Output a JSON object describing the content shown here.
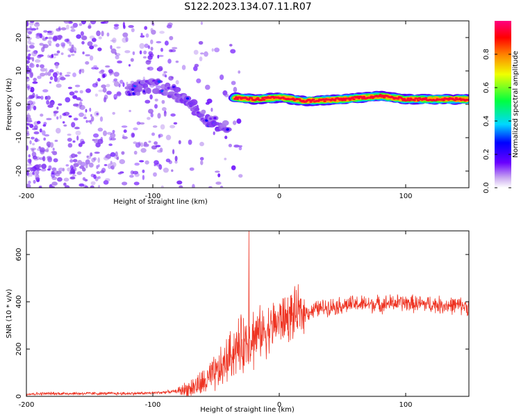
{
  "title": "S122.2023.134.07.11.R07",
  "colors": {
    "snr_line": "#ee3322",
    "spectrogram_low": "#d8c4f2",
    "spectrogram_high": "#ff0055"
  },
  "chart_data": [
    {
      "type": "heatmap",
      "name": "spectrogram",
      "xlabel": "Height of straight line (km)",
      "ylabel": "Frequency (Hz)",
      "xlim": [
        -200,
        150
      ],
      "ylim": [
        -25,
        25
      ],
      "xticks": [
        -200,
        -100,
        0,
        100
      ],
      "yticks": [
        -20,
        -10,
        0,
        10,
        20
      ],
      "colorbar": {
        "label": "Normalized spectral amplitude",
        "range": [
          0,
          1
        ],
        "ticks": [
          "0.0",
          "0.2",
          "0.4",
          "0.6",
          "0.8"
        ],
        "tick_values": [
          0.0,
          0.2,
          0.4,
          0.6,
          0.8
        ]
      },
      "features": [
        {
          "name": "diffuse noise",
          "x_range": [
            -200,
            -30
          ],
          "freq_range": [
            -25,
            25
          ],
          "amplitude": 0.05
        },
        {
          "name": "descending track",
          "points": [
            [
              -120,
              4
            ],
            [
              -100,
              6
            ],
            [
              -85,
              4
            ],
            [
              -70,
              0
            ],
            [
              -60,
              -4
            ],
            [
              -50,
              -6
            ],
            [
              -40,
              -7
            ]
          ],
          "amplitude": 0.35
        },
        {
          "name": "dominant line",
          "points": [
            [
              -35,
              2
            ],
            [
              -20,
              1.5
            ],
            [
              0,
              2
            ],
            [
              20,
              1
            ],
            [
              50,
              1.5
            ],
            [
              80,
              2.5
            ],
            [
              100,
              1.5
            ],
            [
              150,
              1.5
            ]
          ],
          "amplitude": 0.95
        }
      ]
    },
    {
      "type": "line",
      "name": "snr",
      "xlabel": "Height of straight line (km)",
      "ylabel": "SNR (10 * v/v)",
      "xlim": [
        -200,
        150
      ],
      "ylim": [
        0,
        700
      ],
      "xticks": [
        -200,
        -100,
        0,
        100
      ],
      "yticks": [
        0,
        200,
        400,
        600
      ],
      "series": [
        {
          "name": "SNR",
          "x": [
            -200,
            -180,
            -160,
            -140,
            -120,
            -100,
            -90,
            -80,
            -70,
            -60,
            -50,
            -45,
            -40,
            -35,
            -30,
            -25,
            -20,
            -15,
            -10,
            -5,
            0,
            5,
            10,
            15,
            20,
            25,
            30,
            40,
            50,
            60,
            70,
            80,
            90,
            100,
            110,
            120,
            130,
            140,
            150
          ],
          "y": [
            10,
            12,
            12,
            12,
            12,
            14,
            18,
            22,
            35,
            55,
            95,
            120,
            165,
            200,
            215,
            240,
            255,
            270,
            280,
            300,
            320,
            330,
            340,
            350,
            355,
            360,
            370,
            380,
            385,
            390,
            390,
            390,
            395,
            395,
            390,
            390,
            385,
            385,
            380
          ]
        }
      ],
      "spike": {
        "x": -24,
        "y": 700
      }
    }
  ]
}
